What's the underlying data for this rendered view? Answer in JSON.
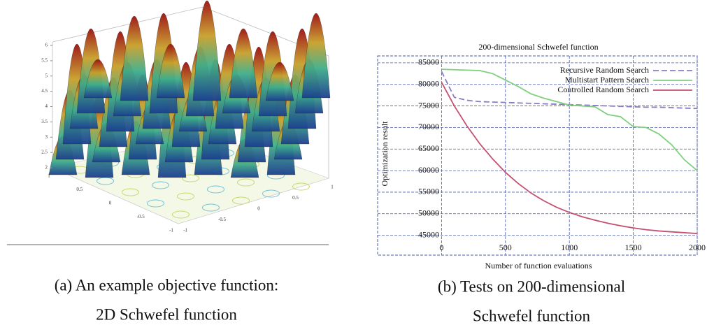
{
  "chart_data": [
    {
      "type": "surface",
      "zticks": [
        2,
        2.5,
        3,
        3.5,
        4,
        4.5,
        5,
        5.5,
        6
      ],
      "xticks": [
        1,
        0.5,
        0,
        -0.5,
        -1
      ],
      "yticks": [
        -1,
        -0.5,
        0,
        0.5,
        1
      ],
      "caption": [
        "(a) An example objective function:",
        "2D Schwefel function"
      ]
    },
    {
      "type": "line",
      "title": "200-dimensional Schwefel function",
      "xlabel": "Number of function evaluations",
      "ylabel": "Optimization result",
      "x": [
        0,
        100,
        200,
        300,
        400,
        500,
        600,
        700,
        800,
        900,
        1000,
        1100,
        1200,
        1300,
        1400,
        1500,
        1600,
        1700,
        1800,
        1900,
        2000
      ],
      "series": [
        {
          "name": "Recursive Random Search",
          "color": "#8a7cc4",
          "dash": true,
          "values": [
            83000,
            77000,
            76300,
            76000,
            75900,
            75800,
            75700,
            75600,
            75500,
            75400,
            75300,
            75200,
            75100,
            75000,
            74900,
            74800,
            74700,
            74700,
            74600,
            74500,
            74400
          ]
        },
        {
          "name": "Multistart Pattern Search",
          "color": "#7fcf7f",
          "dash": false,
          "values": [
            83500,
            83400,
            83300,
            83200,
            82500,
            81000,
            79500,
            77800,
            76800,
            76000,
            75200,
            75000,
            74800,
            73000,
            72500,
            70200,
            70000,
            68500,
            66000,
            62500,
            60000
          ]
        },
        {
          "name": "Controlled Random Search",
          "color": "#c45070",
          "dash": false,
          "values": [
            80500,
            75000,
            70300,
            66200,
            62700,
            59600,
            57000,
            54800,
            53000,
            51500,
            50300,
            49300,
            48500,
            47800,
            47200,
            46700,
            46300,
            46000,
            45800,
            45600,
            45400
          ]
        }
      ],
      "xlim": [
        -500,
        2000
      ],
      "xticks": [
        0,
        500,
        1000,
        1500,
        2000
      ],
      "ylim": [
        40400,
        86600
      ],
      "yticks": [
        45000,
        50000,
        55000,
        60000,
        65000,
        70000,
        75000,
        80000,
        85000
      ],
      "grid": true,
      "caption": [
        "(b) Tests on 200-dimensional",
        "Schwefel function"
      ]
    }
  ]
}
